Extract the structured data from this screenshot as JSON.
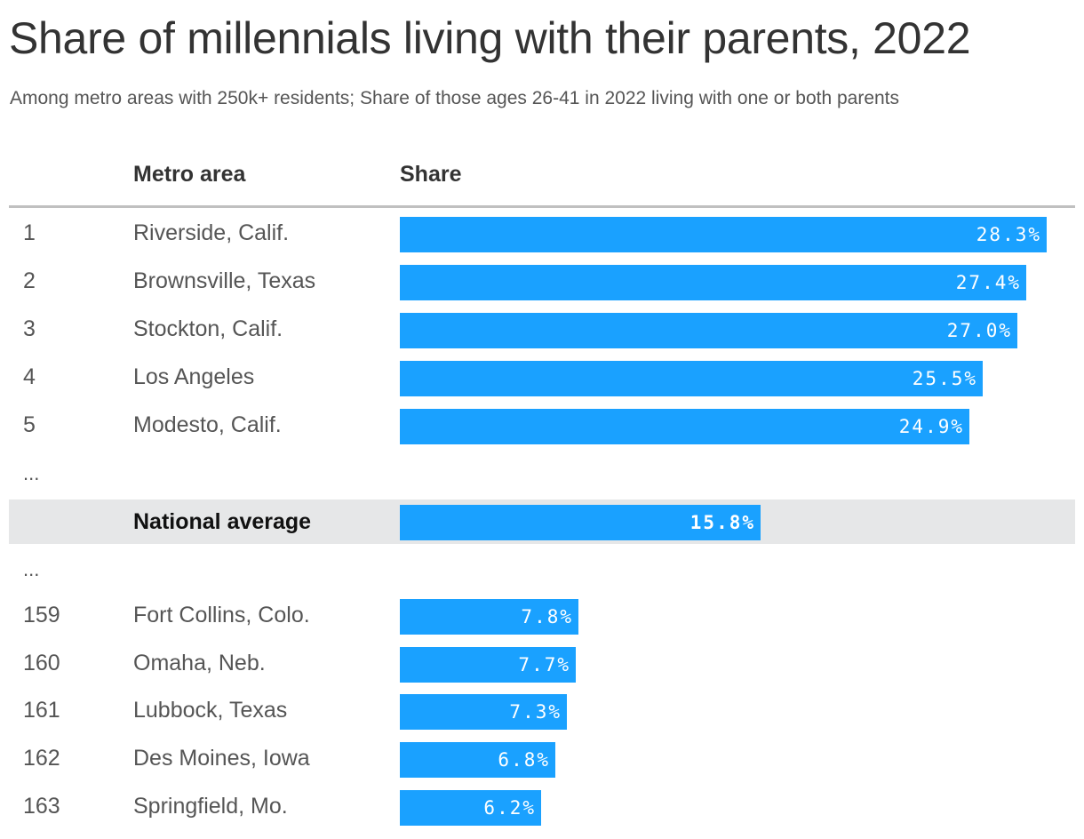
{
  "title": "Share of millennials living with their parents, 2022",
  "subtitle": "Among metro areas with 250k+ residents; Share of those ages 26-41 in 2022 living with one or both parents",
  "columns": {
    "metro": "Metro area",
    "share": "Share"
  },
  "ellipsis": "...",
  "colors": {
    "bar": "#1aa1ff",
    "highlight_row": "#e6e7e8"
  },
  "chart_data": {
    "type": "bar",
    "orientation": "horizontal",
    "title": "Share of millennials living with their parents, 2022",
    "subtitle": "Among metro areas with 250k+ residents; Share of those ages 26-41 in 2022 living with one or both parents",
    "xlabel": "Share",
    "ylabel": "Metro area",
    "xlim": [
      0,
      28.3
    ],
    "rows": [
      {
        "rank": "1",
        "metro": "Riverside, Calif.",
        "value": 28.3,
        "label": "28.3%"
      },
      {
        "rank": "2",
        "metro": "Brownsville, Texas",
        "value": 27.4,
        "label": "27.4%"
      },
      {
        "rank": "3",
        "metro": "Stockton, Calif.",
        "value": 27.0,
        "label": "27.0%"
      },
      {
        "rank": "4",
        "metro": "Los Angeles",
        "value": 25.5,
        "label": "25.5%"
      },
      {
        "rank": "5",
        "metro": "Modesto, Calif.",
        "value": 24.9,
        "label": "24.9%"
      },
      {
        "rank": "",
        "metro": "National average",
        "value": 15.8,
        "label": "15.8%",
        "highlight": true
      },
      {
        "rank": "159",
        "metro": "Fort Collins, Colo.",
        "value": 7.8,
        "label": "7.8%"
      },
      {
        "rank": "160",
        "metro": "Omaha, Neb.",
        "value": 7.7,
        "label": "7.7%"
      },
      {
        "rank": "161",
        "metro": "Lubbock, Texas",
        "value": 7.3,
        "label": "7.3%"
      },
      {
        "rank": "162",
        "metro": "Des Moines, Iowa",
        "value": 6.8,
        "label": "6.8%"
      },
      {
        "rank": "163",
        "metro": "Springfield, Mo.",
        "value": 6.2,
        "label": "6.2%"
      }
    ]
  }
}
